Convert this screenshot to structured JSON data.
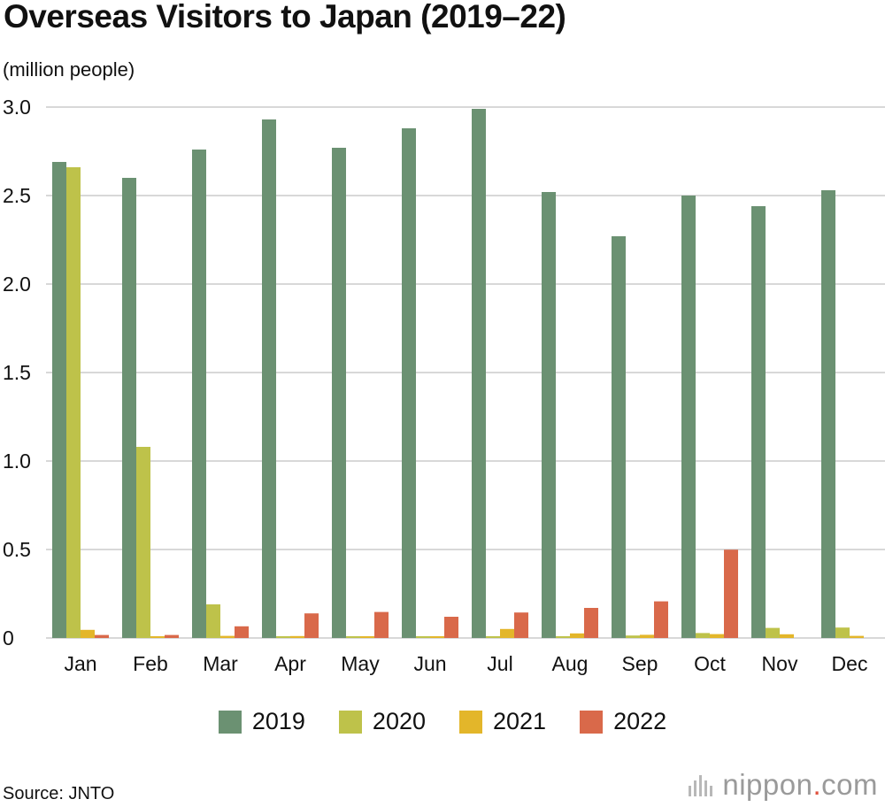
{
  "title": "Overseas Visitors to Japan (2019–22)",
  "unit_label": "(million people)",
  "source": "Source: JNTO",
  "brand": {
    "name_before": "nippon",
    "dot": ".",
    "name_after": "com"
  },
  "colors": {
    "2019": "#6b9172",
    "2020": "#bec24a",
    "2021": "#e3b62a",
    "2022": "#d9694a",
    "grid": "#cccccc",
    "text": "#111111"
  },
  "chart_data": {
    "type": "bar",
    "title": "Overseas Visitors to Japan (2019–22)",
    "xlabel": "",
    "ylabel": "(million people)",
    "ylim": [
      0,
      3.0
    ],
    "yticks": [
      {
        "value": 0,
        "label": "0"
      },
      {
        "value": 0.5,
        "label": "0.5"
      },
      {
        "value": 1.0,
        "label": "1.0"
      },
      {
        "value": 1.5,
        "label": "1.5"
      },
      {
        "value": 2.0,
        "label": "2.0"
      },
      {
        "value": 2.5,
        "label": "2.5"
      },
      {
        "value": 3.0,
        "label": "3.0"
      }
    ],
    "grid": true,
    "legend_position": "bottom-center",
    "categories": [
      "Jan",
      "Feb",
      "Mar",
      "Apr",
      "May",
      "Jun",
      "Jul",
      "Aug",
      "Sep",
      "Oct",
      "Nov",
      "Dec"
    ],
    "series": [
      {
        "name": "2019",
        "color": "#6b9172",
        "values": [
          2.69,
          2.6,
          2.76,
          2.93,
          2.77,
          2.88,
          2.99,
          2.52,
          2.27,
          2.5,
          2.44,
          2.53
        ]
      },
      {
        "name": "2020",
        "color": "#bec24a",
        "values": [
          2.66,
          1.08,
          0.19,
          0.003,
          0.002,
          0.003,
          0.004,
          0.009,
          0.014,
          0.028,
          0.057,
          0.059
        ]
      },
      {
        "name": "2021",
        "color": "#e3b62a",
        "values": [
          0.046,
          0.007,
          0.012,
          0.011,
          0.01,
          0.01,
          0.051,
          0.026,
          0.018,
          0.022,
          0.021,
          0.012
        ]
      },
      {
        "name": "2022",
        "color": "#d9694a",
        "values": [
          0.017,
          0.017,
          0.066,
          0.139,
          0.147,
          0.12,
          0.144,
          0.17,
          0.207,
          0.499,
          0,
          0
        ]
      }
    ]
  }
}
